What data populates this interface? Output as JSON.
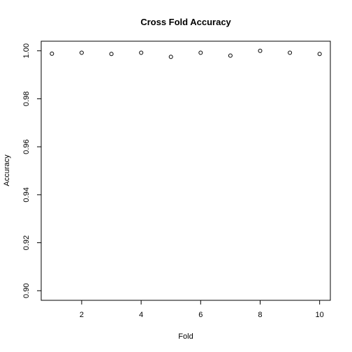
{
  "chart_data": {
    "type": "scatter",
    "title": "Cross Fold Accuracy",
    "xlabel": "Fold",
    "ylabel": "Accuracy",
    "x": [
      1,
      2,
      3,
      4,
      5,
      6,
      7,
      8,
      9,
      10
    ],
    "y": [
      0.9988,
      0.9992,
      0.9987,
      0.9992,
      0.9975,
      0.9992,
      0.998,
      1.0,
      0.9992,
      0.9987
    ],
    "xlim": [
      0.64,
      10.36
    ],
    "ylim": [
      0.896,
      1.004
    ],
    "xticks": [
      2,
      4,
      6,
      8,
      10
    ],
    "yticks": [
      0.9,
      0.92,
      0.94,
      0.96,
      0.98,
      1.0
    ],
    "ytick_labels": [
      "0.90",
      "0.92",
      "0.94",
      "0.96",
      "0.98",
      "1.00"
    ],
    "grid": false,
    "legend": false,
    "marker": "open-circle",
    "colors": {
      "marker": "#000000",
      "axis": "#000000",
      "background": "#ffffff"
    }
  }
}
